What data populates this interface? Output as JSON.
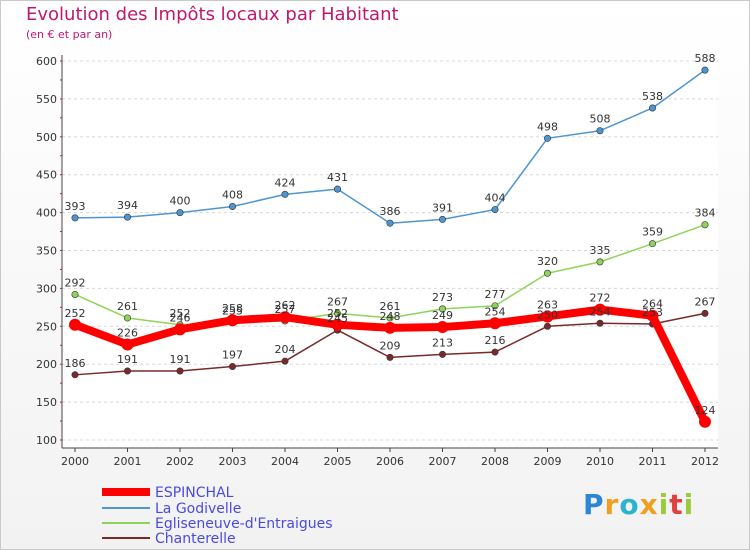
{
  "chart_data": {
    "type": "line",
    "title": "Evolution des Impôts locaux par Habitant",
    "subtitle": "(en € et par an)",
    "xlabel": "",
    "ylabel": "",
    "x": [
      "2000",
      "2001",
      "2002",
      "2003",
      "2004",
      "2005",
      "2006",
      "2007",
      "2008",
      "2009",
      "2010",
      "2011",
      "2012"
    ],
    "ylim": [
      100,
      600
    ],
    "yticks": [
      "100",
      "150",
      "200",
      "250",
      "300",
      "350",
      "400",
      "450",
      "500",
      "550",
      "600"
    ],
    "grid": "horizontal dashed",
    "legend_position": "bottom-left",
    "series": [
      {
        "name": "ESPINCHAL",
        "color": "#ff0000",
        "values": [
          252,
          226,
          246,
          258,
          262,
          252,
          248,
          249,
          254,
          263,
          272,
          264,
          124
        ],
        "labels": [
          "252",
          "226",
          "246",
          "258",
          "262",
          "252",
          "248",
          "249",
          "254",
          "263",
          "272",
          "264",
          "124"
        ]
      },
      {
        "name": "La Godivelle",
        "color": "#4f95d0",
        "values": [
          393,
          394,
          400,
          408,
          424,
          431,
          386,
          391,
          404,
          498,
          508,
          538,
          588
        ],
        "labels": [
          "393",
          "394",
          "400",
          "408",
          "424",
          "431",
          "386",
          "391",
          "404",
          "498",
          "508",
          "538",
          "588"
        ]
      },
      {
        "name": "Egliseneuve-d'Entraigues",
        "color": "#8fd45a",
        "values": [
          292,
          261,
          252,
          255,
          257,
          267,
          261,
          273,
          277,
          320,
          335,
          359,
          384
        ],
        "labels": [
          "292",
          "261",
          "252",
          "255",
          "257",
          "267",
          "261",
          "273",
          "277",
          "320",
          "335",
          "359",
          "384"
        ]
      },
      {
        "name": "Chanterelle",
        "color": "#7a2a2a",
        "values": [
          186,
          191,
          191,
          197,
          204,
          245,
          209,
          213,
          216,
          250,
          254,
          253,
          267
        ],
        "labels": [
          "186",
          "191",
          "191",
          "197",
          "204",
          "245",
          "209",
          "213",
          "216",
          "250",
          "254",
          "253",
          "267"
        ]
      }
    ]
  },
  "brand": {
    "letters": [
      "P",
      "r",
      "o",
      "x",
      "i",
      "t",
      "i"
    ],
    "colors": [
      "#2b86d6",
      "#f0a020",
      "#2bb3d0",
      "#f0a020",
      "#9acb3c",
      "#e04040",
      "#9acb3c"
    ]
  }
}
